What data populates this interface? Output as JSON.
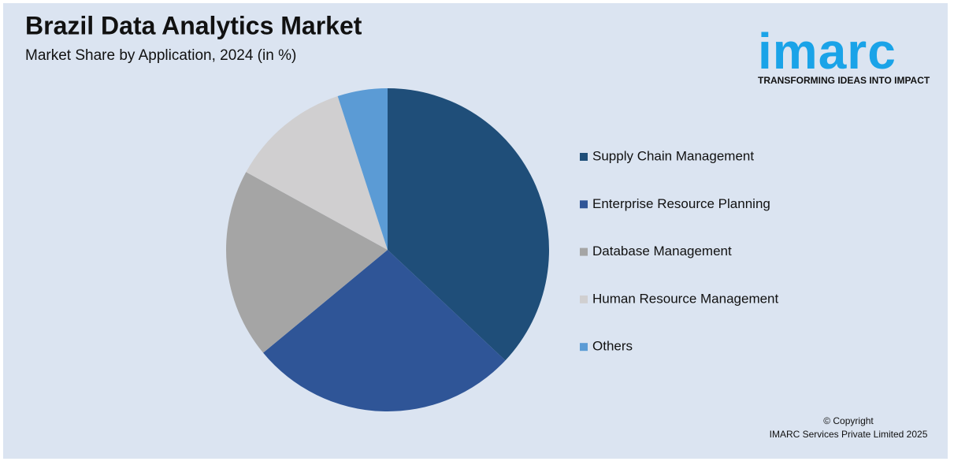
{
  "chart_data": {
    "type": "pie",
    "title": "Brazil Data Analytics Market",
    "subtitle": "Market Share by Application, 2024 (in %)",
    "categories": [
      "Supply Chain Management",
      "Enterprise Resource Planning",
      "Database Management",
      "Human Resource Management",
      "Others"
    ],
    "values": [
      37,
      27,
      19,
      12,
      5
    ],
    "colors": [
      "#1f4e79",
      "#2f5597",
      "#a5a5a5",
      "#d0cfd0",
      "#5b9bd5"
    ],
    "legend": "right"
  },
  "branding": {
    "logo": "imarc",
    "tagline": "TRANSFORMING IDEAS INTO IMPACT",
    "copyright": "© Copyright",
    "company": "IMARC Services Private Limited 2025"
  }
}
